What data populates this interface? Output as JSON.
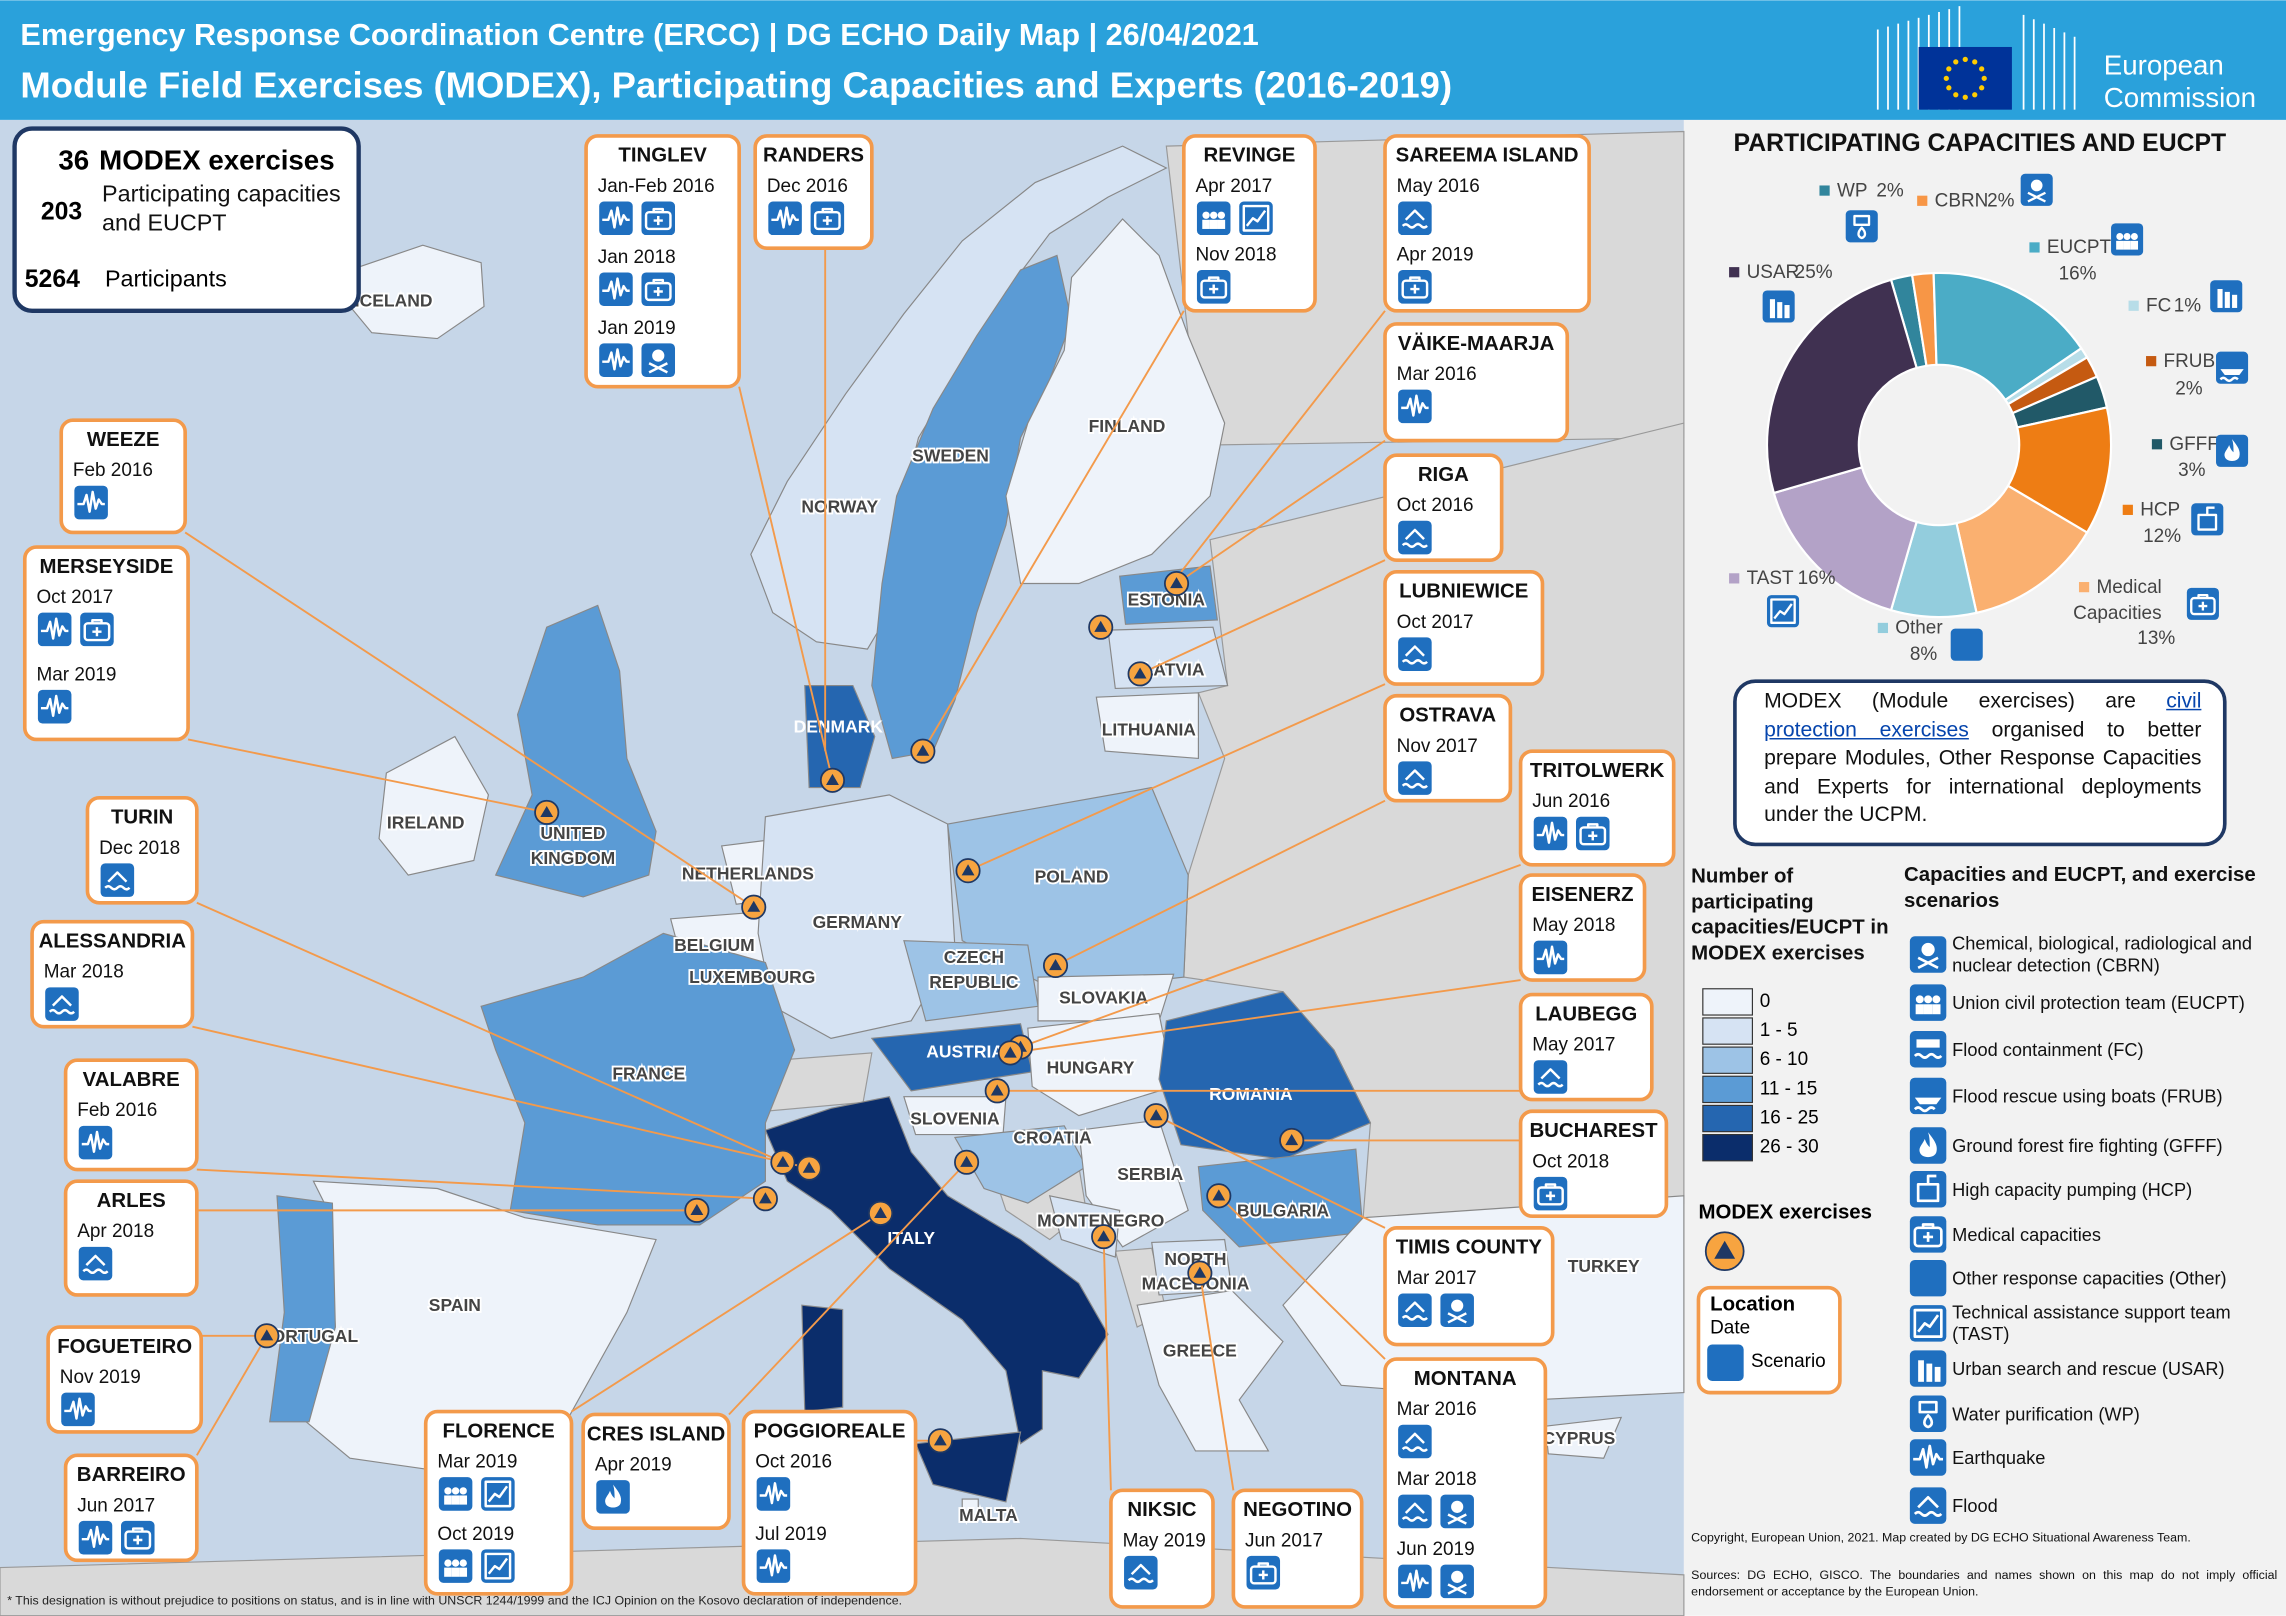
{
  "header": {
    "title": "Emergency Response Coordination Centre (ERCC) | DG ECHO Daily Map | 26/04/2021",
    "subtitle": "Module Field Exercises (MODEX), Participating Capacities and Experts (2016-2019)",
    "logo_lines": [
      "European",
      "Commission"
    ]
  },
  "stats": [
    {
      "value": 36,
      "label": "MODEX exercises"
    },
    {
      "value": 203,
      "label": "Participating capacities and EUCPT"
    },
    {
      "value": 5264,
      "label": "Participants"
    }
  ],
  "countries": [
    {
      "name": "ICELAND",
      "color": "#eef3fa"
    },
    {
      "name": "NORWAY",
      "color": "#d6e3f3"
    },
    {
      "name": "SWEDEN",
      "color": "#5b9bd5"
    },
    {
      "name": "FINLAND",
      "color": "#eef3fa"
    },
    {
      "name": "ESTONIA",
      "color": "#5b9bd5"
    },
    {
      "name": "LATVIA",
      "color": "#d6e3f3"
    },
    {
      "name": "LITHUANIA",
      "color": "#eef3fa"
    },
    {
      "name": "DENMARK",
      "color": "#2566b0"
    },
    {
      "name": "IRELAND",
      "color": "#eef3fa"
    },
    {
      "name": "UNITED KINGDOM",
      "color": "#5b9bd5"
    },
    {
      "name": "NETHERLANDS",
      "color": "#eef3fa"
    },
    {
      "name": "BELGIUM",
      "color": "#eef3fa"
    },
    {
      "name": "LUXEMBOURG",
      "color": "#eef3fa"
    },
    {
      "name": "GERMANY",
      "color": "#d6e3f3"
    },
    {
      "name": "POLAND",
      "color": "#9dc3e6"
    },
    {
      "name": "CZECH REPUBLIC",
      "color": "#9dc3e6"
    },
    {
      "name": "SLOVAKIA",
      "color": "#eef3fa"
    },
    {
      "name": "AUSTRIA",
      "color": "#2566b0"
    },
    {
      "name": "HUNGARY",
      "color": "#eef3fa"
    },
    {
      "name": "ROMANIA",
      "color": "#2566b0"
    },
    {
      "name": "SLOVENIA",
      "color": "#eef3fa"
    },
    {
      "name": "CROATIA",
      "color": "#9dc3e6"
    },
    {
      "name": "SERBIA",
      "color": "#eef3fa"
    },
    {
      "name": "MONTENEGRO",
      "color": "#d6e3f3"
    },
    {
      "name": "NORTH MACEDONIA",
      "color": "#d6e3f3"
    },
    {
      "name": "BULGARIA",
      "color": "#5b9bd5"
    },
    {
      "name": "GREECE",
      "color": "#eef3fa"
    },
    {
      "name": "TURKEY",
      "color": "#eef3fa"
    },
    {
      "name": "CYPRUS",
      "color": "#eef3fa"
    },
    {
      "name": "MALTA",
      "color": "#eef3fa"
    },
    {
      "name": "ITALY",
      "color": "#0b2d6b"
    },
    {
      "name": "FRANCE",
      "color": "#5b9bd5"
    },
    {
      "name": "SPAIN",
      "color": "#eef3fa"
    },
    {
      "name": "PORTUGAL",
      "color": "#5b9bd5"
    }
  ],
  "callouts": [
    {
      "name": "TINGLEV",
      "entries": [
        {
          "date": "Jan-Feb 2016",
          "icons": [
            "eq",
            "med"
          ]
        },
        {
          "date": "Jan 2018",
          "icons": [
            "eq",
            "med"
          ]
        },
        {
          "date": "Jan 2019",
          "icons": [
            "eq",
            "cbrn"
          ]
        }
      ]
    },
    {
      "name": "RANDERS",
      "entries": [
        {
          "date": "Dec 2016",
          "icons": [
            "eq",
            "med"
          ]
        }
      ]
    },
    {
      "name": "REVINGE",
      "entries": [
        {
          "date": "Apr 2017",
          "icons": [
            "eucpt",
            "tast"
          ]
        },
        {
          "date": "Nov 2018",
          "icons": [
            "med"
          ]
        }
      ]
    },
    {
      "name": "SAREEMA ISLAND",
      "entries": [
        {
          "date": "May 2016",
          "icons": [
            "flood"
          ]
        },
        {
          "date": "Apr 2019",
          "icons": [
            "med"
          ]
        }
      ]
    },
    {
      "name": "VÄIKE-MAARJA",
      "entries": [
        {
          "date": "Mar 2016",
          "icons": [
            "eq"
          ]
        }
      ]
    },
    {
      "name": "RIGA",
      "entries": [
        {
          "date": "Oct 2016",
          "icons": [
            "flood"
          ]
        }
      ]
    },
    {
      "name": "LUBNIEWICE",
      "entries": [
        {
          "date": "Oct 2017",
          "icons": [
            "flood"
          ]
        }
      ]
    },
    {
      "name": "OSTRAVA",
      "entries": [
        {
          "date": "Nov 2017",
          "icons": [
            "flood"
          ]
        }
      ]
    },
    {
      "name": "TRITOLWERK",
      "entries": [
        {
          "date": "Jun 2016",
          "icons": [
            "eq",
            "med"
          ]
        }
      ]
    },
    {
      "name": "EISENERZ",
      "entries": [
        {
          "date": "May 2018",
          "icons": [
            "eq"
          ]
        }
      ]
    },
    {
      "name": "LAUBEGG",
      "entries": [
        {
          "date": "May 2017",
          "icons": [
            "flood"
          ]
        }
      ]
    },
    {
      "name": "BUCHAREST",
      "entries": [
        {
          "date": "Oct 2018",
          "icons": [
            "med"
          ]
        }
      ]
    },
    {
      "name": "TIMIS COUNTY",
      "entries": [
        {
          "date": "Mar 2017",
          "icons": [
            "flood",
            "cbrn"
          ]
        }
      ]
    },
    {
      "name": "MONTANA",
      "entries": [
        {
          "date": "Mar 2016",
          "icons": [
            "flood"
          ]
        },
        {
          "date": "Mar 2018",
          "icons": [
            "flood",
            "cbrn"
          ]
        },
        {
          "date": "Jun 2019",
          "icons": [
            "eq",
            "cbrn"
          ]
        }
      ]
    },
    {
      "name": "NEGOTINO",
      "entries": [
        {
          "date": "Jun 2017",
          "icons": [
            "med"
          ]
        }
      ]
    },
    {
      "name": "NIKSIC",
      "entries": [
        {
          "date": "May 2019",
          "icons": [
            "flood"
          ]
        }
      ]
    },
    {
      "name": "POGGIOREALE",
      "entries": [
        {
          "date": "Oct 2016",
          "icons": [
            "eq"
          ]
        },
        {
          "date": "Jul 2019",
          "icons": [
            "eq"
          ]
        }
      ]
    },
    {
      "name": "CRES ISLAND",
      "entries": [
        {
          "date": "Apr 2019",
          "icons": [
            "gfff"
          ]
        }
      ]
    },
    {
      "name": "FLORENCE",
      "entries": [
        {
          "date": "Mar 2019",
          "icons": [
            "eucpt",
            "tast"
          ]
        },
        {
          "date": "Oct 2019",
          "icons": [
            "eucpt",
            "tast"
          ]
        }
      ]
    },
    {
      "name": "BARREIRO",
      "entries": [
        {
          "date": "Jun 2017",
          "icons": [
            "eq",
            "med"
          ]
        }
      ]
    },
    {
      "name": "FOGUETEIRO",
      "entries": [
        {
          "date": "Nov 2019",
          "icons": [
            "eq"
          ]
        }
      ]
    },
    {
      "name": "ARLES",
      "entries": [
        {
          "date": "Apr 2018",
          "icons": [
            "flood"
          ]
        }
      ]
    },
    {
      "name": "VALABRE",
      "entries": [
        {
          "date": "Feb 2016",
          "icons": [
            "eq"
          ]
        }
      ]
    },
    {
      "name": "ALESSANDRIA",
      "entries": [
        {
          "date": "Mar 2018",
          "icons": [
            "flood"
          ]
        }
      ]
    },
    {
      "name": "TURIN",
      "entries": [
        {
          "date": "Dec 2018",
          "icons": [
            "flood"
          ]
        }
      ]
    },
    {
      "name": "MERSEYSIDE",
      "entries": [
        {
          "date": "Oct 2017",
          "icons": [
            "eq",
            "med"
          ]
        },
        {
          "date": "Mar 2019",
          "icons": [
            "eq"
          ]
        }
      ]
    },
    {
      "name": "WEEZE",
      "entries": [
        {
          "date": "Feb 2016",
          "icons": [
            "eq"
          ]
        }
      ]
    }
  ],
  "chart_data": {
    "type": "pie",
    "title": "PARTICIPATING CAPACITIES AND EUCPT",
    "categories": [
      "WP",
      "CBRN",
      "EUCPT",
      "FC",
      "FRUB",
      "GFFF",
      "HCP",
      "Medical Capacities",
      "Other",
      "TAST",
      "USAR"
    ],
    "values": [
      2,
      2,
      16,
      1,
      2,
      3,
      12,
      13,
      8,
      16,
      25
    ],
    "value_labels": [
      "2%",
      "2%",
      "16%",
      "1%",
      "2%",
      "3%",
      "12%",
      "13%",
      "8%",
      "16%",
      "25%"
    ],
    "colors": [
      "#31859c",
      "#f79646",
      "#4bacc6",
      "#b7dde8",
      "#c55a11",
      "#215968",
      "#ee7d14",
      "#fab070",
      "#93cddd",
      "#b3a2c7",
      "#403151"
    ]
  },
  "info": {
    "before": "MODEX (Module exercises) are",
    "link": "civil protection exercises",
    "after": "organised to better prepare Modules, Other Response Capacities and Experts for international deployments under the UCPM."
  },
  "color_legend": {
    "title": "Number of participating capacities/EUCPT in MODEX exercises",
    "classes": [
      {
        "label": "0",
        "color": "#eef3fa"
      },
      {
        "label": "1 - 5",
        "color": "#d6e3f3"
      },
      {
        "label": "6 - 10",
        "color": "#9dc3e6"
      },
      {
        "label": "11 - 15",
        "color": "#5b9bd5"
      },
      {
        "label": "16 - 25",
        "color": "#2566b0"
      },
      {
        "label": "26 - 30",
        "color": "#0b2d6b"
      }
    ]
  },
  "symbol_legend": {
    "title": "MODEX exercises",
    "location": "Location",
    "date": "Date",
    "scenario": "Scenario"
  },
  "capacity_legend": {
    "title": "Capacities and EUCPT, and exercise scenarios",
    "items": [
      {
        "icon": "cbrn",
        "label": "Chemical, biological, radiological and nuclear detection (CBRN)"
      },
      {
        "icon": "eucpt",
        "label": "Union civil protection team (EUCPT)"
      },
      {
        "icon": "fc",
        "label": "Flood containment (FC)"
      },
      {
        "icon": "frub",
        "label": "Flood rescue using boats (FRUB)"
      },
      {
        "icon": "gfff",
        "label": "Ground forest fire fighting (GFFF)"
      },
      {
        "icon": "hcp",
        "label": "High capacity pumping (HCP)"
      },
      {
        "icon": "med",
        "label": "Medical capacities"
      },
      {
        "icon": "other",
        "label": "Other response capacities (Other)"
      },
      {
        "icon": "tast",
        "label": "Technical assistance support team (TAST)"
      },
      {
        "icon": "usar",
        "label": "Urban search and rescue (USAR)"
      },
      {
        "icon": "wp",
        "label": "Water purification (WP)"
      },
      {
        "icon": "eq",
        "label": "Earthquake"
      },
      {
        "icon": "flood",
        "label": "Flood"
      }
    ]
  },
  "footer": {
    "copyright": "Copyright, European Union, 2021. Map created by DG ECHO Situational Awareness Team.",
    "sources": "Sources: DG ECHO, GISCO. The boundaries and names shown on this map do not imply official endorsement or acceptance by the European Union.",
    "footnote": "* This designation is without prejudice to positions on status, and is in line with UNSCR 1244/1999 and the ICJ Opinion on the Kosovo declaration of independence."
  }
}
